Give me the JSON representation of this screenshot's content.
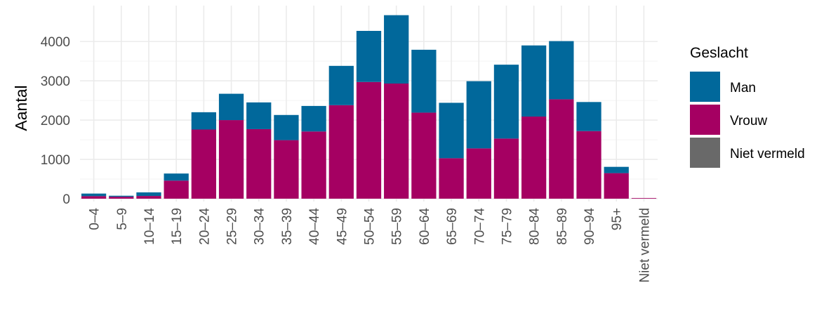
{
  "chart_data": {
    "type": "bar",
    "stacked": true,
    "title": "",
    "xlabel": "",
    "ylabel": "Aantal",
    "ylim": [
      0,
      4700
    ],
    "yticks": [
      0,
      1000,
      2000,
      3000,
      4000
    ],
    "grid": true,
    "legend_position": "right",
    "categories": [
      "0–4",
      "5–9",
      "10–14",
      "15–19",
      "20–24",
      "25–29",
      "30–34",
      "35–39",
      "40–44",
      "45–49",
      "50–54",
      "55–59",
      "60–64",
      "65–69",
      "70–74",
      "75–79",
      "80–84",
      "85–89",
      "90–94",
      "95+",
      "Niet vermeld"
    ],
    "series": [
      {
        "name": "Vrouw",
        "color": "#A50062",
        "values": [
          65,
          50,
          70,
          460,
          1760,
          2000,
          1770,
          1490,
          1710,
          2380,
          2970,
          2930,
          2190,
          1030,
          1280,
          1530,
          2090,
          2530,
          1720,
          650,
          15
        ]
      },
      {
        "name": "Man",
        "color": "#01689B",
        "values": [
          65,
          25,
          90,
          180,
          440,
          670,
          680,
          640,
          650,
          1000,
          1300,
          1740,
          1600,
          1410,
          1710,
          1880,
          1810,
          1480,
          740,
          160,
          0
        ]
      },
      {
        "name": "Niet vermeld",
        "color": "#696969",
        "values": [
          0,
          0,
          0,
          0,
          0,
          0,
          0,
          0,
          0,
          0,
          0,
          0,
          0,
          0,
          0,
          0,
          0,
          0,
          0,
          0,
          0
        ]
      }
    ],
    "legend": {
      "title": "Geslacht",
      "entries": [
        {
          "label": "Man",
          "color": "#01689B"
        },
        {
          "label": "Vrouw",
          "color": "#A50062"
        },
        {
          "label": "Niet vermeld",
          "color": "#696969"
        }
      ]
    }
  }
}
